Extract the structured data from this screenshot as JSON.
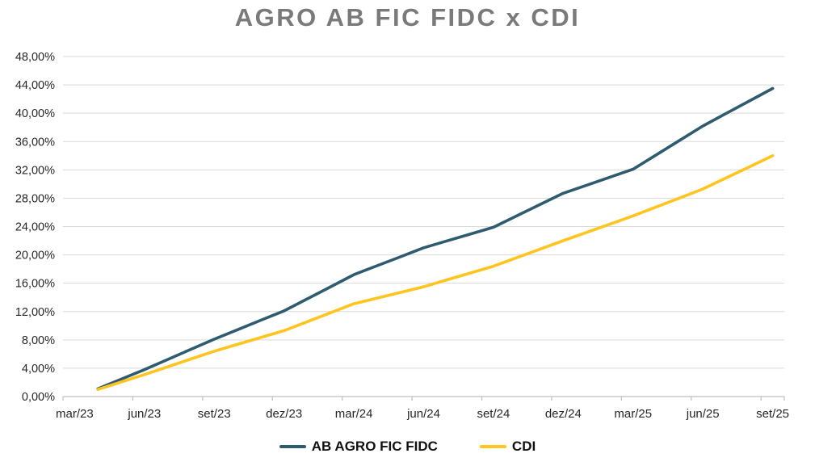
{
  "chart_data": {
    "type": "line",
    "title": "AGRO AB FIC FIDC x CDI",
    "title_color": "#7A7A7A",
    "xlabel": "",
    "ylabel": "",
    "x_tick_labels": [
      "mar/23",
      "jun/23",
      "set/23",
      "dez/23",
      "mar/24",
      "jun/24",
      "set/24",
      "dez/24",
      "mar/25",
      "jun/25",
      "set/25"
    ],
    "x_total_categories": 31,
    "x_tick_every_categories": 3,
    "y_tick_labels": [
      "0,00%",
      "4,00%",
      "8,00%",
      "12,00%",
      "16,00%",
      "20,00%",
      "24,00%",
      "28,00%",
      "32,00%",
      "36,00%",
      "40,00%",
      "44,00%",
      "48,00%"
    ],
    "ylim": [
      0,
      48
    ],
    "y_step": 4,
    "grid": true,
    "gridline_color": "#D9D9D9",
    "axis_line_color": "#BFBFBF",
    "tick_label_color": "#262626",
    "legend_position": "bottom",
    "series": [
      {
        "name": "AB AGRO FIC FIDC",
        "color": "#2F5B70",
        "start_category_index": 1,
        "start_label": "abr/23",
        "values": [
          1.1,
          2.45,
          3.8,
          5.23,
          6.67,
          8.1,
          9.43,
          10.77,
          12.1,
          13.8,
          15.5,
          17.2,
          18.47,
          19.73,
          21.0,
          21.97,
          22.93,
          23.9,
          25.5,
          27.1,
          28.7,
          29.83,
          30.97,
          32.1,
          34.13,
          36.17,
          38.2,
          39.97,
          41.73,
          43.5
        ],
        "values_at_x_ticks": [
          null,
          3.8,
          8.1,
          12.1,
          17.2,
          21.0,
          23.9,
          28.7,
          32.1,
          38.2,
          43.5
        ]
      },
      {
        "name": "CDI",
        "color": "#FFC41D",
        "start_category_index": 1,
        "start_label": "abr/23",
        "values": [
          1.0,
          2.05,
          3.1,
          4.2,
          5.3,
          6.4,
          7.37,
          8.33,
          9.3,
          10.57,
          11.83,
          13.1,
          13.9,
          14.7,
          15.5,
          16.47,
          17.43,
          18.4,
          19.6,
          20.8,
          22.0,
          23.17,
          24.33,
          25.5,
          26.77,
          28.03,
          29.3,
          30.87,
          32.43,
          34.0
        ],
        "values_at_x_ticks": [
          null,
          3.1,
          6.4,
          9.3,
          13.1,
          15.5,
          18.4,
          22.0,
          25.5,
          29.3,
          34.0
        ]
      }
    ]
  }
}
